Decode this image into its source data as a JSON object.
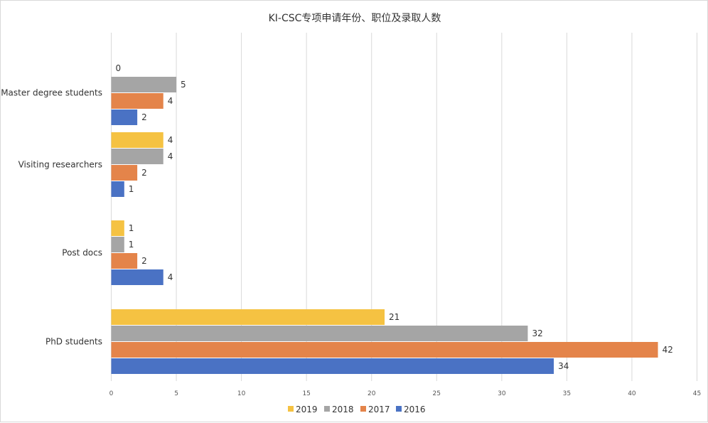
{
  "chart_data": {
    "type": "bar",
    "orientation": "horizontal",
    "title": "KI-CSC专项申请年份、职位及录取人数",
    "categories": [
      "Master degree students",
      "Visiting researchers",
      "Post docs",
      "PhD students"
    ],
    "series": [
      {
        "name": "2019",
        "color": "#f5c242",
        "values": [
          0,
          4,
          1,
          21
        ]
      },
      {
        "name": "2018",
        "color": "#a5a5a5",
        "values": [
          5,
          4,
          1,
          32
        ]
      },
      {
        "name": "2017",
        "color": "#e4844a",
        "values": [
          4,
          2,
          2,
          42
        ]
      },
      {
        "name": "2016",
        "color": "#4a72c4",
        "values": [
          2,
          1,
          4,
          34
        ]
      }
    ],
    "xlim": [
      0,
      45
    ],
    "xticks": [
      0,
      5,
      10,
      15,
      20,
      25,
      30,
      35,
      40,
      45
    ],
    "grid": "vertical",
    "legend_position": "bottom",
    "data_labels": true
  }
}
